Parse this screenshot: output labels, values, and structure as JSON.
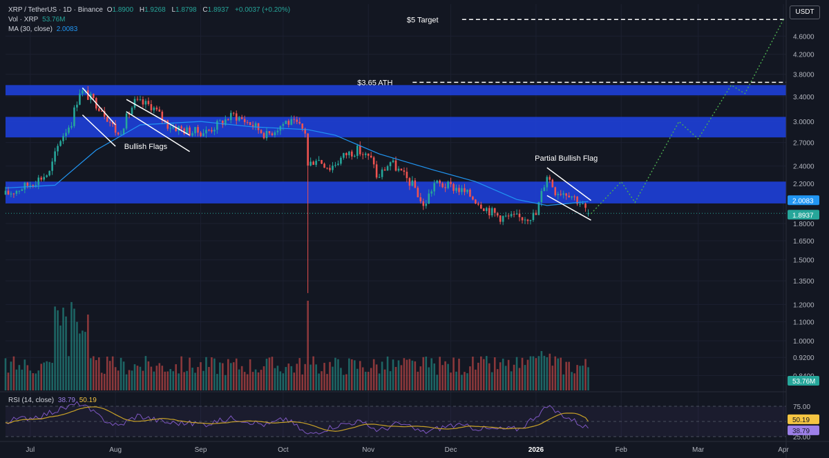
{
  "header": {
    "pair": "XRP / TetherUS · 1D · Binance",
    "o_label": "O",
    "o_value": "1.8900",
    "h_label": "H",
    "h_value": "1.9268",
    "l_label": "L",
    "l_value": "1.8798",
    "c_label": "C",
    "c_value": "1.8937",
    "change": "+0.0037 (+0.20%)",
    "vol_label": "Vol · XRP",
    "vol_value": "53.76M",
    "ma_label": "MA (30, close)",
    "ma_value": "2.0083",
    "rsi_label": "RSI (14, close)",
    "rsi_value": "38.79",
    "rsi_ma_value": "50.19"
  },
  "currency_button": "USDT",
  "colors": {
    "background": "#131722",
    "up": "#26a69a",
    "down": "#ef5350",
    "ma_line": "#2196f3",
    "zone": "#1e3fd8",
    "projection": "#4caf50",
    "rsi_line": "#7e57c2",
    "rsi_ma": "#c9a227"
  },
  "chart_data": {
    "type": "candlestick",
    "symbol": "XRP/USDT",
    "timeframe": "1D",
    "exchange": "Binance",
    "yscale": "log",
    "ylim": [
      0.78,
      5.4
    ],
    "ticks_y": [
      {
        "v": 4.6,
        "t": "4.6000"
      },
      {
        "v": 4.2,
        "t": "4.2000"
      },
      {
        "v": 3.8,
        "t": "3.8000"
      },
      {
        "v": 3.4,
        "t": "3.4000"
      },
      {
        "v": 3.0,
        "t": "3.0000"
      },
      {
        "v": 2.7,
        "t": "2.7000"
      },
      {
        "v": 2.4,
        "t": "2.4000"
      },
      {
        "v": 2.2,
        "t": "2.2000"
      },
      {
        "v": 1.8,
        "t": "1.8000"
      },
      {
        "v": 1.65,
        "t": "1.6500"
      },
      {
        "v": 1.5,
        "t": "1.5000"
      },
      {
        "v": 1.35,
        "t": "1.3500"
      },
      {
        "v": 1.2,
        "t": "1.2000"
      },
      {
        "v": 1.1,
        "t": "1.1000"
      },
      {
        "v": 1.0,
        "t": "1.0000"
      },
      {
        "v": 0.92,
        "t": "0.9200"
      },
      {
        "v": 0.84,
        "t": "0.8400"
      }
    ],
    "ticks_x": [
      {
        "d": "2025-07-01",
        "t": "Jul"
      },
      {
        "d": "2025-08-01",
        "t": "Aug"
      },
      {
        "d": "2025-09-01",
        "t": "Sep"
      },
      {
        "d": "2025-10-01",
        "t": "Oct"
      },
      {
        "d": "2025-11-01",
        "t": "Nov"
      },
      {
        "d": "2025-12-01",
        "t": "Dec"
      },
      {
        "d": "2026-01-01",
        "t": "2026"
      },
      {
        "d": "2026-02-01",
        "t": "Feb"
      },
      {
        "d": "2026-03-01",
        "t": "Mar"
      },
      {
        "d": "2026-04-01",
        "t": "Apr"
      }
    ],
    "price_labels": [
      {
        "v": 2.0083,
        "t": "2.0083",
        "color": "#2196f3"
      },
      {
        "v": 1.8937,
        "t": "1.8937",
        "color": "#26a69a"
      }
    ],
    "vol_label": {
      "t": "53.76M",
      "color": "#26a69a"
    },
    "rsi_ticks": [
      {
        "v": 75,
        "t": "75.00"
      },
      {
        "v": 25,
        "t": "25.00"
      }
    ],
    "rsi_labels": [
      {
        "v": 50.19,
        "t": "50.19",
        "color": "#f5c542"
      },
      {
        "v": 38.79,
        "t": "38.79",
        "color": "#9c7fe8"
      }
    ],
    "close_anchors": [
      [
        "2025-06-22",
        2.08
      ],
      [
        "2025-06-30",
        2.18
      ],
      [
        "2025-07-08",
        2.32
      ],
      [
        "2025-07-12",
        2.75
      ],
      [
        "2025-07-16",
        3.0
      ],
      [
        "2025-07-19",
        3.5
      ],
      [
        "2025-07-21",
        3.45
      ],
      [
        "2025-07-27",
        3.2
      ],
      [
        "2025-08-02",
        2.8
      ],
      [
        "2025-08-08",
        3.3
      ],
      [
        "2025-08-14",
        3.25
      ],
      [
        "2025-08-20",
        2.95
      ],
      [
        "2025-08-28",
        2.85
      ],
      [
        "2025-09-03",
        2.85
      ],
      [
        "2025-09-13",
        3.1
      ],
      [
        "2025-09-20",
        2.95
      ],
      [
        "2025-09-25",
        2.8
      ],
      [
        "2025-10-02",
        3.0
      ],
      [
        "2025-10-06",
        2.95
      ],
      [
        "2025-10-09",
        2.85
      ],
      [
        "2025-10-10",
        2.4
      ],
      [
        "2025-10-13",
        2.5
      ],
      [
        "2025-10-18",
        2.38
      ],
      [
        "2025-10-24",
        2.55
      ],
      [
        "2025-10-28",
        2.6
      ],
      [
        "2025-11-03",
        2.45
      ],
      [
        "2025-11-04",
        2.25
      ],
      [
        "2025-11-09",
        2.45
      ],
      [
        "2025-11-14",
        2.28
      ],
      [
        "2025-11-18",
        2.15
      ],
      [
        "2025-11-21",
        1.95
      ],
      [
        "2025-11-25",
        2.2
      ],
      [
        "2025-12-03",
        2.15
      ],
      [
        "2025-12-08",
        2.07
      ],
      [
        "2025-12-15",
        1.92
      ],
      [
        "2025-12-19",
        1.86
      ],
      [
        "2025-12-26",
        1.85
      ],
      [
        "2026-01-01",
        1.88
      ],
      [
        "2026-01-05",
        2.3
      ],
      [
        "2026-01-08",
        2.12
      ],
      [
        "2026-01-13",
        2.1
      ],
      [
        "2026-01-17",
        2.0
      ],
      [
        "2026-01-20",
        1.8937
      ]
    ],
    "rsi_anchors": [
      [
        "2025-06-22",
        50
      ],
      [
        "2025-07-05",
        60
      ],
      [
        "2025-07-19",
        80
      ],
      [
        "2025-07-27",
        55
      ],
      [
        "2025-08-02",
        42
      ],
      [
        "2025-08-09",
        60
      ],
      [
        "2025-08-20",
        48
      ],
      [
        "2025-09-03",
        46
      ],
      [
        "2025-09-13",
        56
      ],
      [
        "2025-09-25",
        44
      ],
      [
        "2025-10-02",
        55
      ],
      [
        "2025-10-10",
        28
      ],
      [
        "2025-10-20",
        43
      ],
      [
        "2025-10-28",
        50
      ],
      [
        "2025-11-05",
        35
      ],
      [
        "2025-11-12",
        47
      ],
      [
        "2025-11-21",
        32
      ],
      [
        "2025-12-01",
        44
      ],
      [
        "2025-12-15",
        37
      ],
      [
        "2025-12-26",
        38
      ],
      [
        "2026-01-05",
        74
      ],
      [
        "2026-01-12",
        58
      ],
      [
        "2026-01-20",
        38.79
      ]
    ],
    "zones": [
      {
        "low": 3.42,
        "high": 3.6
      },
      {
        "low": 2.77,
        "high": 3.07
      },
      {
        "low": 1.99,
        "high": 2.22
      }
    ],
    "targets": [
      {
        "label": "$5 Target",
        "v": 5.0,
        "from": "2025-11-15"
      },
      {
        "label": "$3.65 ATH",
        "v": 3.65,
        "from": "2025-10-28"
      }
    ],
    "flag_channels": [
      {
        "d1": "2025-07-20",
        "d2": "2025-08-01",
        "upper": [
          3.55,
          2.95
        ],
        "lower": [
          3.1,
          2.65
        ]
      },
      {
        "d1": "2025-08-05",
        "d2": "2025-08-28",
        "upper": [
          3.35,
          2.8
        ],
        "lower": [
          3.15,
          2.58
        ]
      },
      {
        "d1": "2026-01-05",
        "d2": "2026-01-21",
        "upper": [
          2.38,
          2.02
        ],
        "lower": [
          2.07,
          1.83
        ]
      }
    ],
    "projection": [
      [
        "2026-01-21",
        1.89
      ],
      [
        "2026-02-01",
        2.22
      ],
      [
        "2026-02-06",
        2.0
      ],
      [
        "2026-02-22",
        3.0
      ],
      [
        "2026-03-01",
        2.75
      ],
      [
        "2026-03-13",
        3.6
      ],
      [
        "2026-03-18",
        3.45
      ],
      [
        "2026-04-01",
        5.0
      ]
    ],
    "ma_points": [
      [
        "2025-06-22",
        2.15
      ],
      [
        "2025-07-10",
        2.18
      ],
      [
        "2025-07-25",
        2.6
      ],
      [
        "2025-08-10",
        2.95
      ],
      [
        "2025-09-01",
        3.0
      ],
      [
        "2025-09-20",
        2.92
      ],
      [
        "2025-10-10",
        2.88
      ],
      [
        "2025-10-20",
        2.8
      ],
      [
        "2025-11-05",
        2.55
      ],
      [
        "2025-11-25",
        2.35
      ],
      [
        "2025-12-10",
        2.22
      ],
      [
        "2025-12-25",
        2.03
      ],
      [
        "2026-01-05",
        1.97
      ],
      [
        "2026-01-20",
        2.0083
      ]
    ],
    "annotations": [
      {
        "text": "Bullish Flags",
        "d": "2025-08-12",
        "v": 2.65
      },
      {
        "text": "Partial Bullish Flag",
        "d": "2026-01-12",
        "v": 2.5
      }
    ]
  }
}
